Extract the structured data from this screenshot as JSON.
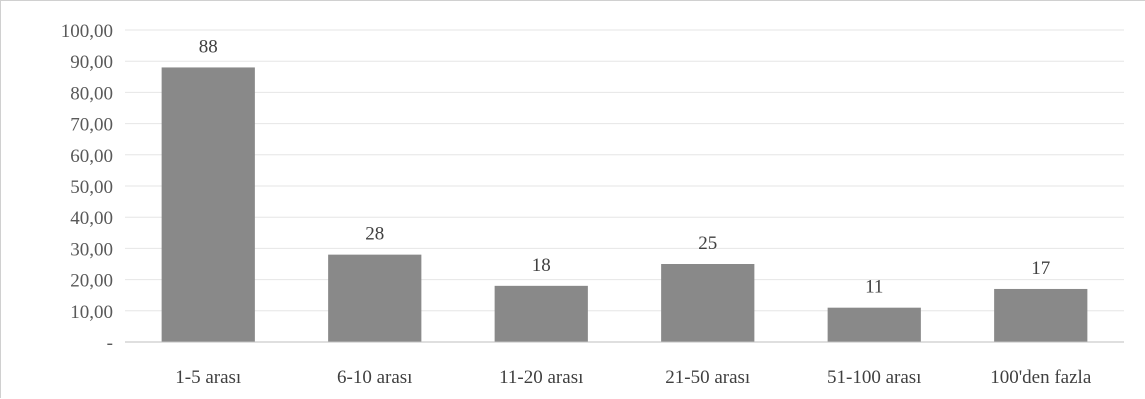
{
  "chart_data": {
    "type": "bar",
    "categories": [
      "1-5 arası",
      "6-10 arası",
      "11-20 arası",
      "21-50 arası",
      "51-100 arası",
      "100'den fazla"
    ],
    "values": [
      88,
      28,
      18,
      25,
      11,
      17
    ],
    "data_labels": [
      "88",
      "28",
      "18",
      "25",
      "11",
      "17"
    ],
    "y_tick_labels": [
      "-",
      "10,00",
      "20,00",
      "30,00",
      "40,00",
      "50,00",
      "60,00",
      "70,00",
      "80,00",
      "90,00",
      "100,00"
    ],
    "ylim": [
      0,
      100
    ],
    "y_tick_step": 10,
    "grid": true,
    "legend": "none",
    "bar_color": "#898989",
    "grid_color": "#e6e6e6",
    "axis_color": "#bfbfbf"
  }
}
